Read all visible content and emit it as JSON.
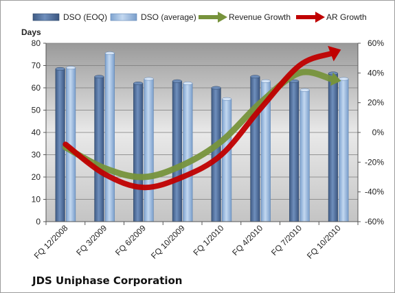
{
  "chart_data": {
    "type": "bar",
    "title": "JDS Uniphase Corporation",
    "ylabel": "Days",
    "ylim": [
      0,
      80
    ],
    "y2lim": [
      -0.6,
      0.6
    ],
    "yticks": [
      "0",
      "10",
      "20",
      "30",
      "40",
      "50",
      "60",
      "70",
      "80"
    ],
    "y2ticks": [
      "-60%",
      "-40%",
      "-20%",
      "0%",
      "20%",
      "40%",
      "60%"
    ],
    "categories": [
      "FQ 12/2008",
      "FQ 3/2009",
      "FQ 6/2009",
      "FQ 10/2009",
      "FQ 1/2010",
      "FQ 4/2010",
      "FQ 7/2010",
      "FQ 10/2010"
    ],
    "legend_position": "top",
    "series": [
      {
        "name": "DSO (EOQ)",
        "kind": "bar",
        "axis": "left",
        "color": "#4f6e99",
        "values": [
          68.5,
          65,
          62,
          63,
          60,
          65,
          63,
          66.5
        ]
      },
      {
        "name": "DSO (average)",
        "kind": "bar",
        "axis": "left",
        "color": "#8cb0dc",
        "values": [
          69,
          75.5,
          64,
          62,
          55,
          63,
          59,
          64
        ]
      },
      {
        "name": "Revenue Growth",
        "kind": "line",
        "axis": "right",
        "color": "#77933c",
        "values": [
          -0.1,
          -0.24,
          -0.3,
          -0.22,
          -0.06,
          0.2,
          0.4,
          0.35
        ]
      },
      {
        "name": "AR Growth",
        "kind": "line",
        "axis": "right",
        "color": "#c00000",
        "values": [
          -0.08,
          -0.28,
          -0.37,
          -0.3,
          -0.15,
          0.16,
          0.45,
          0.55
        ]
      }
    ]
  }
}
